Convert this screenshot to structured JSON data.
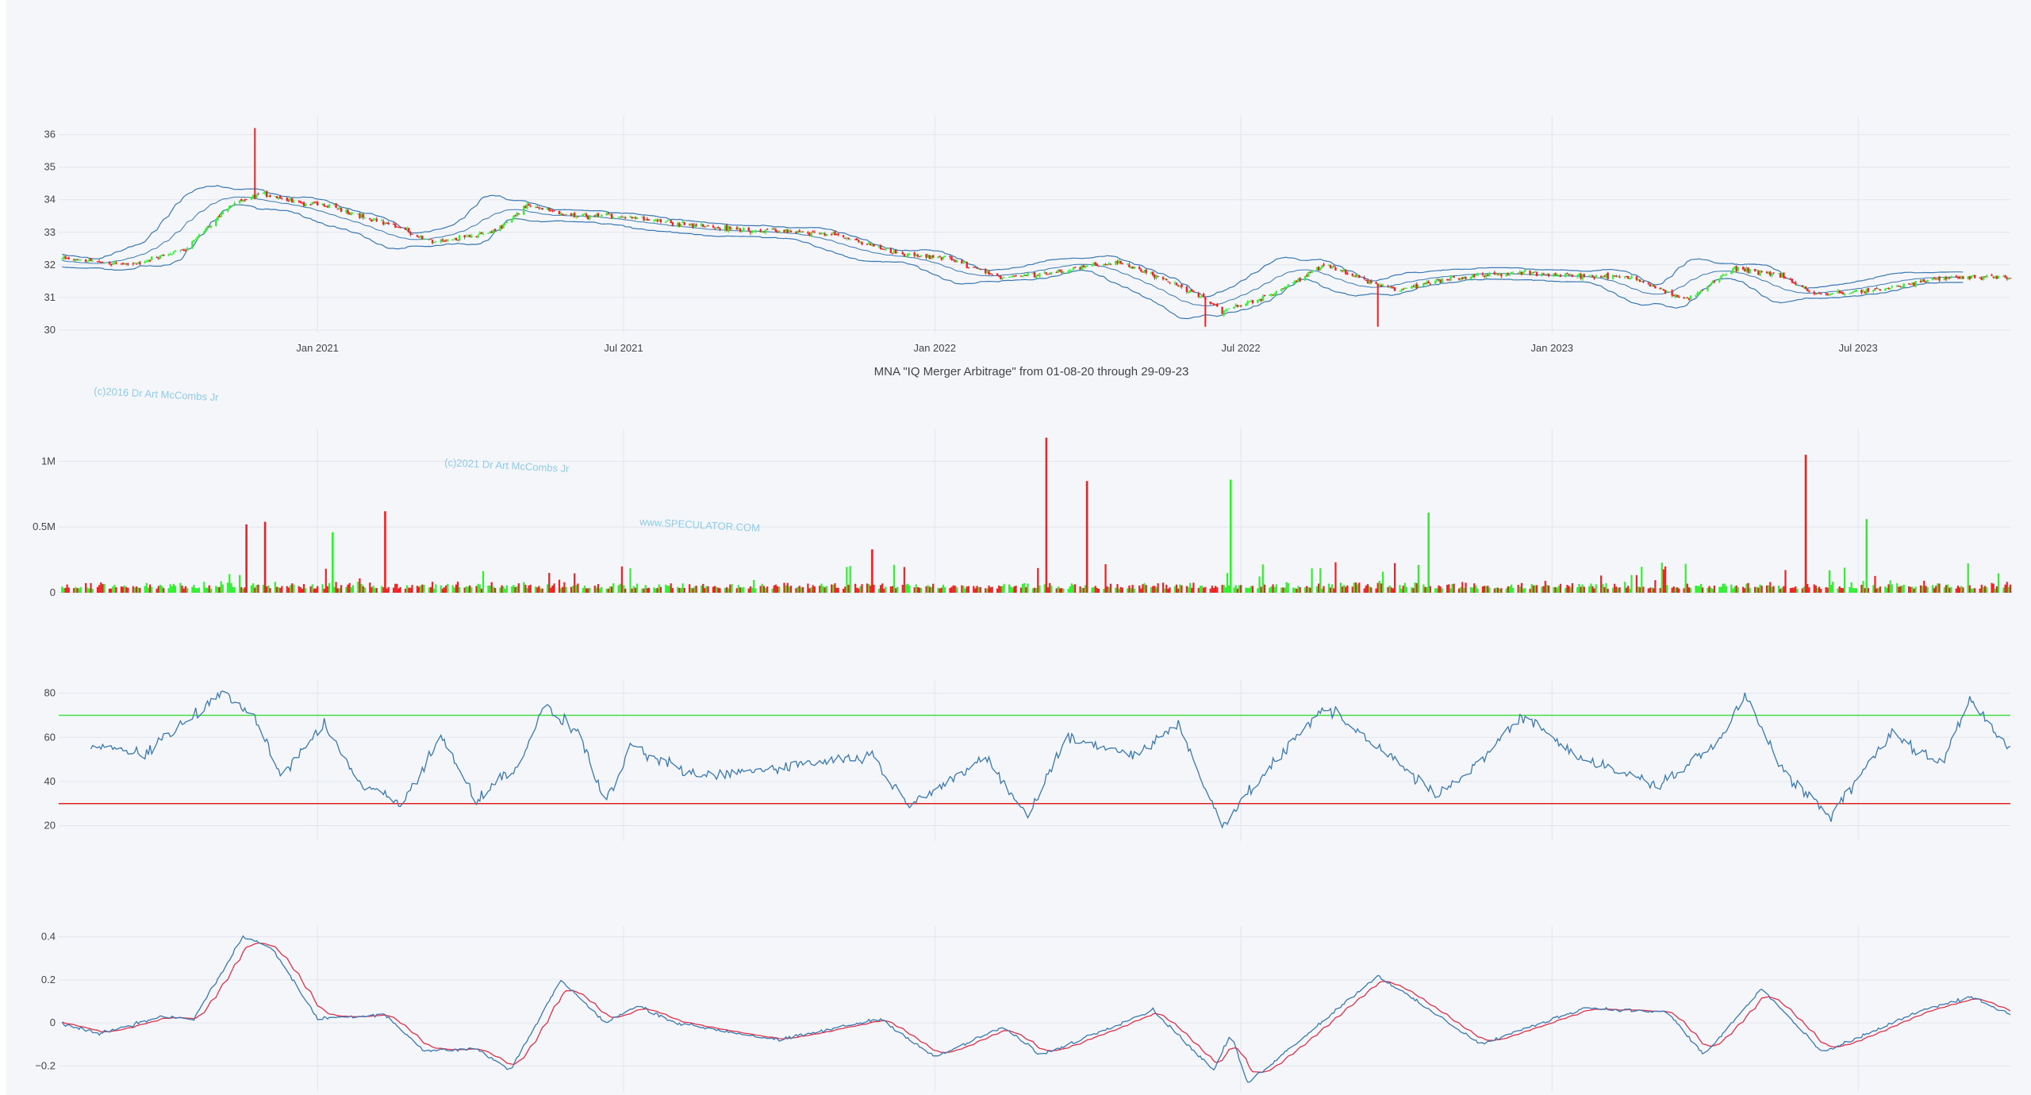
{
  "colors": {
    "up": "#33ee33",
    "down": "#ee2222",
    "line": "#3a78b0",
    "signal": "#e0304a",
    "rsi_upper": "#44dd44",
    "rsi_lower": "#dd2222",
    "background": "#f4f6fa",
    "grid": "#e2e5ec"
  },
  "chart_data": [
    {
      "type": "candlestick",
      "panel": "price",
      "title": "MNA \"IQ Merger Arbitrage\" from 01-08-20 through 29-09-23",
      "x_range": [
        "2020-08-01",
        "2023-09-29"
      ],
      "x_ticks": [
        "Jan 2021",
        "Jul 2021",
        "Jan 2022",
        "Jul 2022",
        "Jan 2023",
        "Jul 2023"
      ],
      "y_ticks": [
        30,
        31,
        32,
        33,
        34,
        35,
        36
      ],
      "ylim": [
        29.9,
        36.6
      ],
      "close_anchors": [
        [
          "2020-08-01",
          32.2
        ],
        [
          "2020-09-15",
          32.0
        ],
        [
          "2020-10-15",
          32.5
        ],
        [
          "2020-11-10",
          33.8
        ],
        [
          "2020-11-30",
          34.2
        ],
        [
          "2020-12-20",
          33.9
        ],
        [
          "2021-01-10",
          33.8
        ],
        [
          "2021-02-15",
          33.2
        ],
        [
          "2021-03-10",
          32.7
        ],
        [
          "2021-04-15",
          33.0
        ],
        [
          "2021-05-05",
          33.8
        ],
        [
          "2021-06-01",
          33.5
        ],
        [
          "2021-07-01",
          33.5
        ],
        [
          "2021-09-01",
          33.1
        ],
        [
          "2021-11-01",
          32.95
        ],
        [
          "2021-12-15",
          32.3
        ],
        [
          "2022-01-10",
          32.2
        ],
        [
          "2022-02-10",
          31.6
        ],
        [
          "2022-03-15",
          31.8
        ],
        [
          "2022-04-20",
          32.1
        ],
        [
          "2022-06-01",
          31.2
        ],
        [
          "2022-06-20",
          30.6
        ],
        [
          "2022-07-15",
          31.0
        ],
        [
          "2022-08-20",
          32.0
        ],
        [
          "2022-10-01",
          31.2
        ],
        [
          "2022-11-01",
          31.6
        ],
        [
          "2022-12-15",
          31.75
        ],
        [
          "2023-02-20",
          31.6
        ],
        [
          "2023-03-20",
          30.9
        ],
        [
          "2023-04-20",
          31.9
        ],
        [
          "2023-05-15",
          31.7
        ],
        [
          "2023-06-05",
          31.1
        ],
        [
          "2023-07-10",
          31.2
        ],
        [
          "2023-08-20",
          31.6
        ],
        [
          "2023-09-29",
          31.6
        ]
      ],
      "spikes": [
        {
          "date": "2020-11-25",
          "high": 36.2,
          "color": "down"
        },
        {
          "date": "2022-09-20",
          "low": 30.1,
          "color": "down"
        },
        {
          "date": "2022-06-10",
          "low": 30.1,
          "color": "down"
        }
      ],
      "indicator": "Bollinger Bands"
    },
    {
      "type": "bar",
      "panel": "volume",
      "y_ticks": [
        "0",
        "0.5M",
        "1M"
      ],
      "y_tick_values": [
        0,
        500000,
        1000000
      ],
      "ylim": [
        0,
        1250000
      ],
      "big_bars": [
        {
          "date": "2020-11-20",
          "value": 520000,
          "color": "down"
        },
        {
          "date": "2020-12-01",
          "value": 540000,
          "color": "down"
        },
        {
          "date": "2021-01-10",
          "value": 460000,
          "color": "up"
        },
        {
          "date": "2021-02-10",
          "value": 620000,
          "color": "down"
        },
        {
          "date": "2021-11-25",
          "value": 330000,
          "color": "down"
        },
        {
          "date": "2022-03-08",
          "value": 1180000,
          "color": "down"
        },
        {
          "date": "2022-04-01",
          "value": 850000,
          "color": "down"
        },
        {
          "date": "2022-06-25",
          "value": 860000,
          "color": "up"
        },
        {
          "date": "2022-10-20",
          "value": 610000,
          "color": "up"
        },
        {
          "date": "2023-05-31",
          "value": 1050000,
          "color": "down"
        },
        {
          "date": "2023-07-06",
          "value": 560000,
          "color": "up"
        }
      ]
    },
    {
      "type": "line",
      "panel": "rsi",
      "y_ticks": [
        20,
        40,
        60,
        80
      ],
      "ylim": [
        13,
        86
      ],
      "upper_level": 70,
      "lower_level": 30,
      "anchors": [
        [
          "2020-08-20",
          57
        ],
        [
          "2020-09-20",
          52
        ],
        [
          "2020-10-20",
          70
        ],
        [
          "2020-11-05",
          80
        ],
        [
          "2020-11-25",
          70
        ],
        [
          "2020-12-10",
          42
        ],
        [
          "2021-01-05",
          66
        ],
        [
          "2021-01-25",
          40
        ],
        [
          "2021-02-20",
          30
        ],
        [
          "2021-03-15",
          60
        ],
        [
          "2021-04-05",
          32
        ],
        [
          "2021-04-30",
          48
        ],
        [
          "2021-05-15",
          74
        ],
        [
          "2021-06-05",
          62
        ],
        [
          "2021-06-20",
          30
        ],
        [
          "2021-07-05",
          55
        ],
        [
          "2021-08-15",
          42
        ],
        [
          "2021-10-15",
          48
        ],
        [
          "2021-11-25",
          52
        ],
        [
          "2021-12-15",
          30
        ],
        [
          "2022-02-01",
          50
        ],
        [
          "2022-02-25",
          24
        ],
        [
          "2022-03-20",
          60
        ],
        [
          "2022-04-30",
          52
        ],
        [
          "2022-05-25",
          66
        ],
        [
          "2022-06-20",
          20
        ],
        [
          "2022-07-20",
          48
        ],
        [
          "2022-08-20",
          74
        ],
        [
          "2022-09-20",
          56
        ],
        [
          "2022-10-25",
          33
        ],
        [
          "2022-11-20",
          50
        ],
        [
          "2022-12-15",
          70
        ],
        [
          "2023-01-20",
          50
        ],
        [
          "2023-03-05",
          38
        ],
        [
          "2023-04-10",
          58
        ],
        [
          "2023-04-25",
          80
        ],
        [
          "2023-05-20",
          42
        ],
        [
          "2023-06-15",
          24
        ],
        [
          "2023-07-20",
          62
        ],
        [
          "2023-08-20",
          47
        ],
        [
          "2023-09-05",
          78
        ],
        [
          "2023-09-29",
          55
        ]
      ]
    },
    {
      "type": "line",
      "panel": "macd",
      "y_ticks": [
        "−0.2",
        "0",
        "0.2",
        "0.4"
      ],
      "y_tick_values": [
        -0.2,
        0,
        0.2,
        0.4
      ],
      "ylim": [
        -0.32,
        0.45
      ],
      "anchors": [
        [
          "2020-08-01",
          0.0
        ],
        [
          "2020-08-25",
          -0.05
        ],
        [
          "2020-10-01",
          0.03
        ],
        [
          "2020-10-20",
          0.02
        ],
        [
          "2020-11-18",
          0.4
        ],
        [
          "2020-12-05",
          0.35
        ],
        [
          "2021-01-01",
          0.02
        ],
        [
          "2021-02-10",
          0.04
        ],
        [
          "2021-03-05",
          -0.13
        ],
        [
          "2021-04-05",
          -0.12
        ],
        [
          "2021-04-25",
          -0.22
        ],
        [
          "2021-05-25",
          0.2
        ],
        [
          "2021-06-20",
          0.0
        ],
        [
          "2021-07-10",
          0.08
        ],
        [
          "2021-08-01",
          0.0
        ],
        [
          "2021-10-01",
          -0.08
        ],
        [
          "2021-11-30",
          0.02
        ],
        [
          "2022-01-01",
          -0.16
        ],
        [
          "2022-02-10",
          -0.02
        ],
        [
          "2022-03-05",
          -0.15
        ],
        [
          "2022-05-10",
          0.06
        ],
        [
          "2022-06-15",
          -0.22
        ],
        [
          "2022-06-25",
          -0.05
        ],
        [
          "2022-07-05",
          -0.28
        ],
        [
          "2022-09-20",
          0.22
        ],
        [
          "2022-11-20",
          -0.1
        ],
        [
          "2023-01-20",
          0.07
        ],
        [
          "2023-03-10",
          0.05
        ],
        [
          "2023-04-01",
          -0.15
        ],
        [
          "2023-05-05",
          0.16
        ],
        [
          "2023-06-10",
          -0.14
        ],
        [
          "2023-08-05",
          0.05
        ],
        [
          "2023-09-05",
          0.12
        ],
        [
          "2023-09-29",
          0.04
        ]
      ]
    }
  ],
  "watermarks": [
    "(c)2016 Dr Art McCombs Jr",
    "(c)2021 Dr Art McCombs Jr",
    "www.SPECULATOR.COM"
  ]
}
